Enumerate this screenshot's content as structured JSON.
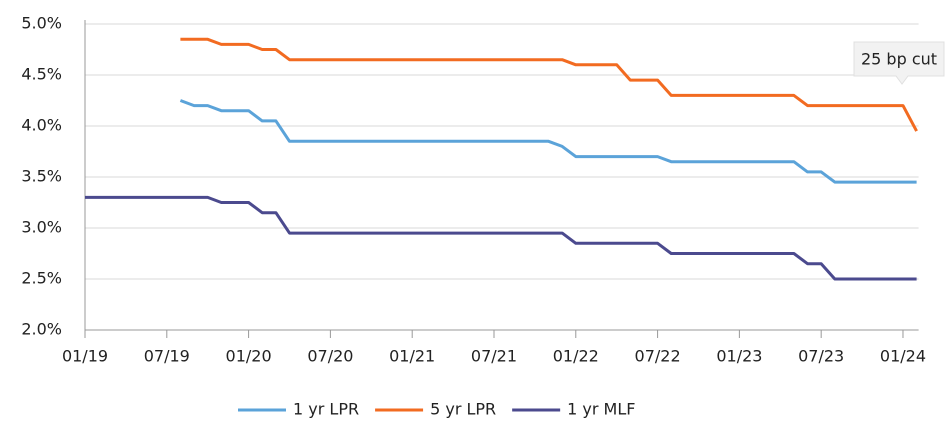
{
  "chart_data": {
    "type": "line",
    "categories": [
      "01/19",
      null,
      null,
      null,
      null,
      null,
      "07/19",
      null,
      null,
      null,
      null,
      null,
      "01/20",
      null,
      null,
      null,
      null,
      null,
      "07/20",
      null,
      null,
      null,
      null,
      null,
      "01/21",
      null,
      null,
      null,
      null,
      null,
      "07/21",
      null,
      null,
      null,
      null,
      null,
      "01/22",
      null,
      null,
      null,
      null,
      null,
      "07/22",
      null,
      null,
      null,
      null,
      null,
      "01/23",
      null,
      null,
      null,
      null,
      null,
      "07/23",
      null,
      null,
      null,
      null,
      null,
      "01/24",
      null
    ],
    "series": [
      {
        "name": "1 yr LPR",
        "color": "#5ba3d9",
        "values": [
          null,
          null,
          null,
          null,
          null,
          null,
          null,
          4.25,
          4.2,
          4.2,
          4.15,
          4.15,
          4.15,
          4.05,
          4.05,
          3.85,
          3.85,
          3.85,
          3.85,
          3.85,
          3.85,
          3.85,
          3.85,
          3.85,
          3.85,
          3.85,
          3.85,
          3.85,
          3.85,
          3.85,
          3.85,
          3.85,
          3.85,
          3.85,
          3.85,
          3.8,
          3.7,
          3.7,
          3.7,
          3.7,
          3.7,
          3.7,
          3.7,
          3.65,
          3.65,
          3.65,
          3.65,
          3.65,
          3.65,
          3.65,
          3.65,
          3.65,
          3.65,
          3.55,
          3.55,
          3.45,
          3.45,
          3.45,
          3.45,
          3.45,
          3.45,
          3.45
        ]
      },
      {
        "name": "5 yr LPR",
        "color": "#f26b21",
        "values": [
          null,
          null,
          null,
          null,
          null,
          null,
          null,
          4.85,
          4.85,
          4.85,
          4.8,
          4.8,
          4.8,
          4.75,
          4.75,
          4.65,
          4.65,
          4.65,
          4.65,
          4.65,
          4.65,
          4.65,
          4.65,
          4.65,
          4.65,
          4.65,
          4.65,
          4.65,
          4.65,
          4.65,
          4.65,
          4.65,
          4.65,
          4.65,
          4.65,
          4.65,
          4.6,
          4.6,
          4.6,
          4.6,
          4.45,
          4.45,
          4.45,
          4.3,
          4.3,
          4.3,
          4.3,
          4.3,
          4.3,
          4.3,
          4.3,
          4.3,
          4.3,
          4.2,
          4.2,
          4.2,
          4.2,
          4.2,
          4.2,
          4.2,
          4.2,
          3.95
        ]
      },
      {
        "name": "1 yr MLF",
        "color": "#4b4a8e",
        "values": [
          3.3,
          3.3,
          3.3,
          3.3,
          3.3,
          3.3,
          3.3,
          3.3,
          3.3,
          3.3,
          3.25,
          3.25,
          3.25,
          3.15,
          3.15,
          2.95,
          2.95,
          2.95,
          2.95,
          2.95,
          2.95,
          2.95,
          2.95,
          2.95,
          2.95,
          2.95,
          2.95,
          2.95,
          2.95,
          2.95,
          2.95,
          2.95,
          2.95,
          2.95,
          2.95,
          2.95,
          2.85,
          2.85,
          2.85,
          2.85,
          2.85,
          2.85,
          2.85,
          2.75,
          2.75,
          2.75,
          2.75,
          2.75,
          2.75,
          2.75,
          2.75,
          2.75,
          2.75,
          2.65,
          2.65,
          2.5,
          2.5,
          2.5,
          2.5,
          2.5,
          2.5,
          2.5
        ]
      }
    ],
    "ylim": [
      2,
      5
    ],
    "yticks": [
      {
        "value": 2,
        "label": "2.0%"
      },
      {
        "value": 2.5,
        "label": "2.5%"
      },
      {
        "value": 3,
        "label": "3.0%"
      },
      {
        "value": 3.5,
        "label": "3.5%"
      },
      {
        "value": 4,
        "label": "4.0%"
      },
      {
        "value": 4.5,
        "label": "4.5%"
      },
      {
        "value": 5,
        "label": "5.0%"
      }
    ],
    "grid": true,
    "annotations": [
      "25 bp cut"
    ],
    "legend": "bottom"
  }
}
